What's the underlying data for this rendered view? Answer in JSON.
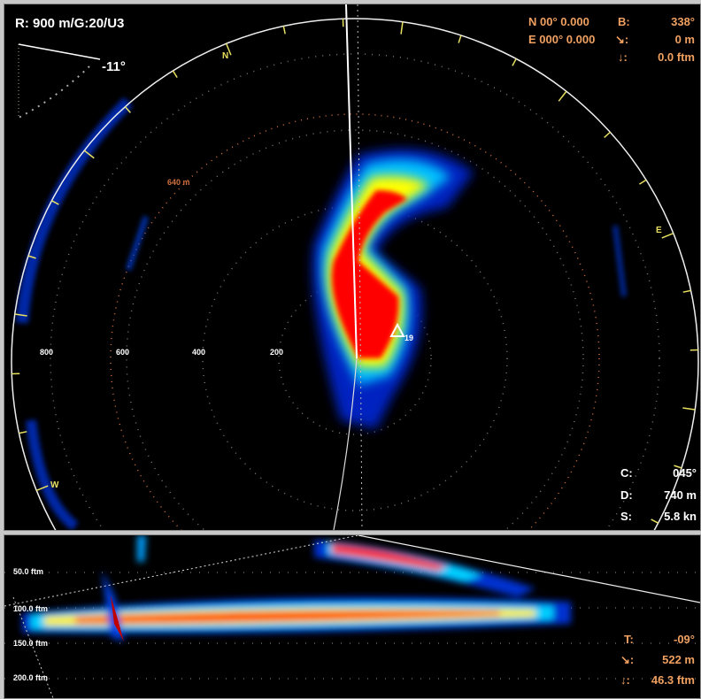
{
  "top_panel": {
    "range_gain": "R: 900 m/G:20/U3",
    "tilt": "-11°",
    "position": {
      "lat": "N  00° 0.000",
      "lon": "E 000° 0.000"
    },
    "bearing": {
      "label": "B:",
      "value": "338°"
    },
    "distance": {
      "label": ":",
      "value": "0 m",
      "icon": "diagonal-arrow-icon"
    },
    "depth": {
      "label": ":",
      "value": "0.0 ftm",
      "icon": "down-arrow-icon"
    },
    "course": {
      "label": "C:",
      "value": "045°"
    },
    "dist2": {
      "label": "D:",
      "value": "740 m"
    },
    "speed": {
      "label": "S:",
      "value": "5.8 kn"
    },
    "compass": [
      "N",
      "E",
      "W"
    ],
    "range_labels": [
      "800",
      "600",
      "400",
      "200"
    ],
    "ring_label": "640 m",
    "target_marker": "19"
  },
  "bottom_panel": {
    "depth_labels": [
      "50.0 ftm",
      "100.0 ftm",
      "150.0 ftm",
      "200.0 ftm"
    ],
    "tilt": {
      "label": "T:",
      "value": "-09°"
    },
    "distance": {
      "label": ":",
      "value": "522 m",
      "icon": "diagonal-arrow-icon"
    },
    "depth": {
      "label": ":",
      "value": "46.3 ftm",
      "icon": "down-arrow-icon"
    }
  },
  "colors": {
    "echo_strong": "#ff0000",
    "echo_mid": "#ffff00",
    "echo_low": "#00c0ff",
    "echo_faint": "#0020c0",
    "info_text": "#f0a060"
  }
}
